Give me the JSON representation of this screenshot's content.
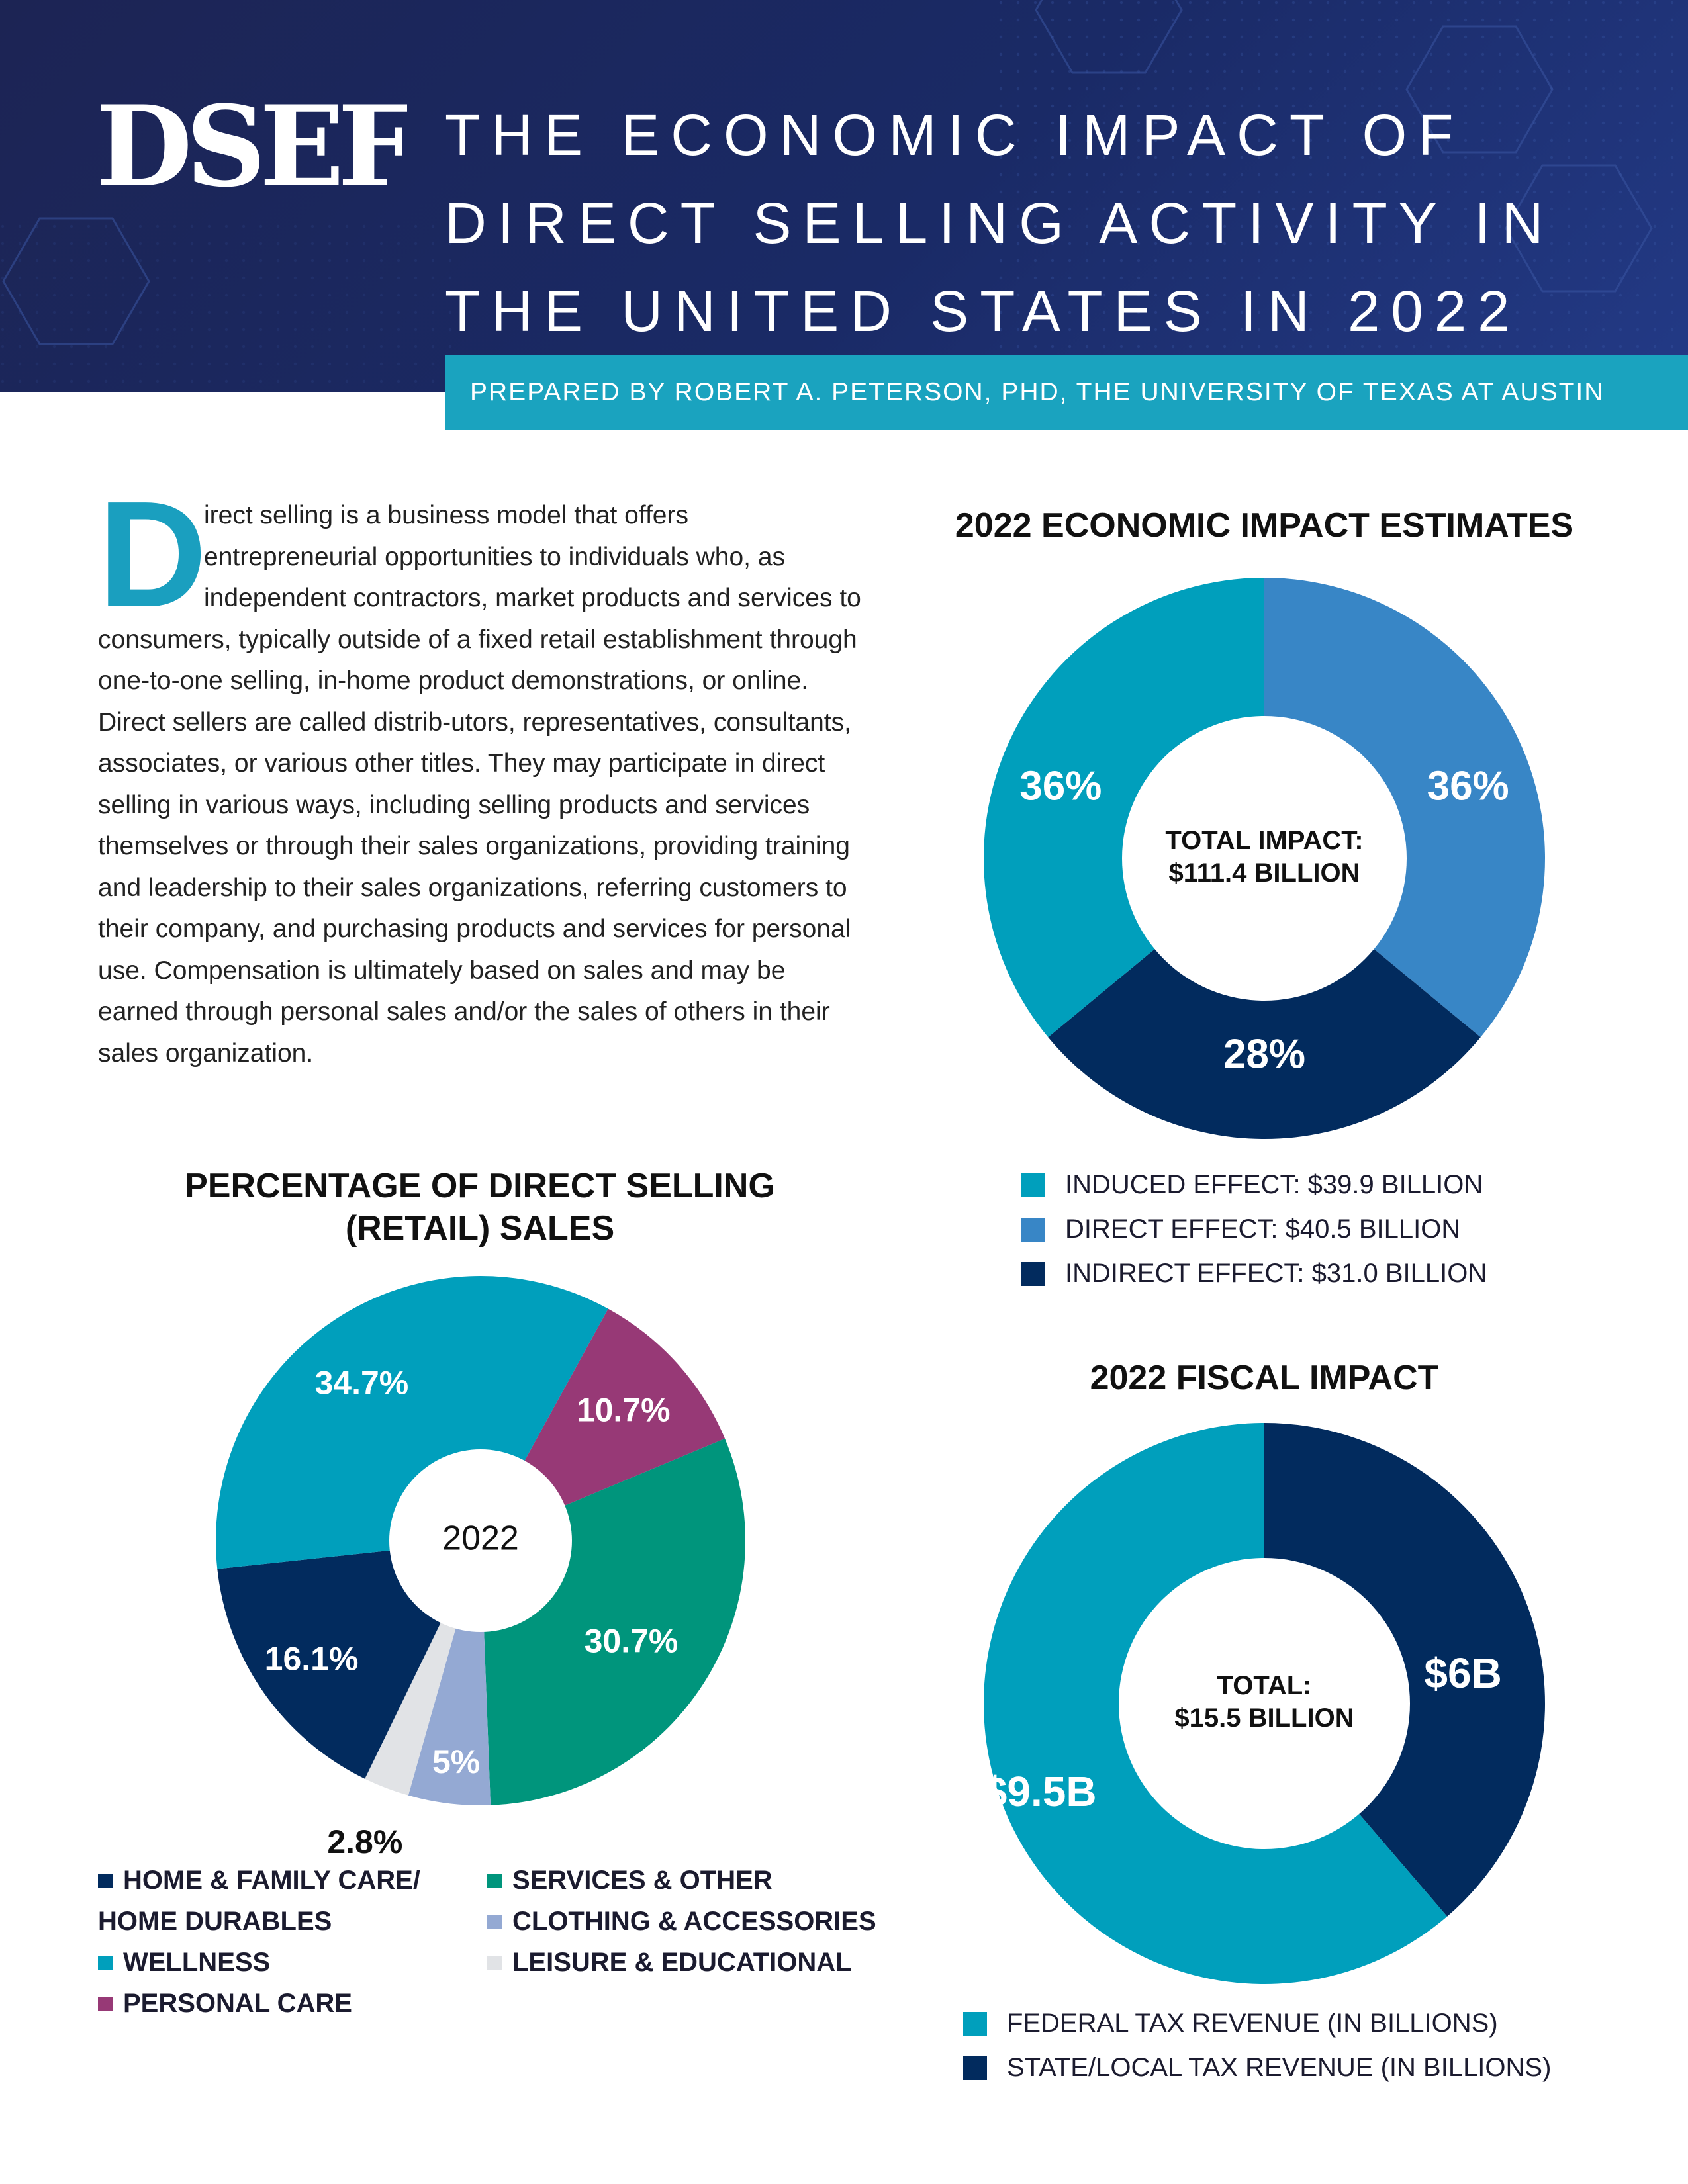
{
  "header": {
    "logo_text": "DSEF",
    "title_lines": [
      "THE ECONOMIC IMPACT OF",
      "DIRECT SELLING ACTIVITY IN",
      "THE UNITED STATES IN 2022"
    ],
    "prepared_by": "PREPARED BY ROBERT A. PETERSON, PHD, THE UNIVERSITY OF TEXAS AT AUSTIN"
  },
  "intro": {
    "dropcap": "D",
    "text": "irect selling is a business model that offers entrepreneurial opportunities to individuals who, as independent contractors, market products and services to consumers, typically outside of a fixed retail establishment through one-to-one selling, in-home product demonstrations, or online. Direct sellers are called distrib-utors, representatives, consultants, associates, or various other titles. They may participate in direct selling in various ways, including selling products and services themselves or through their sales organizations, providing training and leadership to their sales organizations, referring customers to their company, and purchasing products and services for personal use. Compensation is ultimately based on sales and may be earned through personal sales and/or the sales of others in their sales organization."
  },
  "colors": {
    "teal": "#009fbc",
    "blue": "#3886c6",
    "navy": "#022b5e",
    "green": "#00957c",
    "plum": "#973976",
    "lavender": "#94a9d3",
    "lightgray": "#e1e3e6"
  },
  "chart_data": [
    {
      "id": "economic",
      "type": "pie",
      "title": "2022 ECONOMIC IMPACT ESTIMATES",
      "center_lines": [
        "TOTAL IMPACT:",
        "$111.4 BILLION"
      ],
      "slices": [
        {
          "name": "DIRECT EFFECT: $40.5 BILLION",
          "value": 36,
          "label": "36%",
          "color": "#3886c6"
        },
        {
          "name": "INDIRECT EFFECT: $31.0 BILLION",
          "value": 28,
          "label": "28%",
          "color": "#022b5e"
        },
        {
          "name": "INDUCED EFFECT: $39.9 BILLION",
          "value": 36,
          "label": "36%",
          "color": "#009fbc"
        }
      ],
      "legend": [
        {
          "label": "INDUCED EFFECT: $39.9 BILLION",
          "color": "#009fbc"
        },
        {
          "label": "DIRECT EFFECT: $40.5 BILLION",
          "color": "#3886c6"
        },
        {
          "label": "INDIRECT EFFECT: $31.0 BILLION",
          "color": "#022b5e"
        }
      ]
    },
    {
      "id": "retail",
      "type": "pie",
      "title_lines": [
        "PERCENTAGE OF DIRECT SELLING",
        "(RETAIL) SALES"
      ],
      "center_lines": [
        "2022"
      ],
      "slices": [
        {
          "name": "PERSONAL CARE",
          "value": 10.7,
          "label": "10.7%",
          "color": "#973976"
        },
        {
          "name": "SERVICES & OTHER",
          "value": 30.7,
          "label": "30.7%",
          "color": "#00957c"
        },
        {
          "name": "CLOTHING & ACCESSORIES",
          "value": 5,
          "label": "5%",
          "color": "#94a9d3"
        },
        {
          "name": "LEISURE & EDUCATIONAL",
          "value": 2.8,
          "label": "2.8%",
          "color": "#e1e3e6"
        },
        {
          "name": "HOME & FAMILY CARE/ HOME DURABLES",
          "value": 16.1,
          "label": "16.1%",
          "color": "#022b5e"
        },
        {
          "name": "WELLNESS",
          "value": 34.7,
          "label": "34.7%",
          "color": "#009fbc"
        }
      ],
      "legend_left": [
        {
          "label_lines": [
            "HOME & FAMILY CARE/",
            "HOME DURABLES"
          ],
          "color": "#022b5e"
        },
        {
          "label_lines": [
            "WELLNESS"
          ],
          "color": "#009fbc"
        },
        {
          "label_lines": [
            "PERSONAL CARE"
          ],
          "color": "#973976"
        }
      ],
      "legend_right": [
        {
          "label_lines": [
            "SERVICES & OTHER"
          ],
          "color": "#00957c"
        },
        {
          "label_lines": [
            "CLOTHING & ACCESSORIES"
          ],
          "color": "#94a9d3"
        },
        {
          "label_lines": [
            "LEISURE & EDUCATIONAL"
          ],
          "color": "#e1e3e6"
        }
      ]
    },
    {
      "id": "fiscal",
      "type": "pie",
      "title": "2022 FISCAL IMPACT",
      "center_lines": [
        "TOTAL:",
        "$15.5 BILLION"
      ],
      "slices": [
        {
          "name": "STATE/LOCAL TAX REVENUE (IN BILLIONS)",
          "value": 6,
          "label": "$6B",
          "color": "#022b5e"
        },
        {
          "name": "FEDERAL TAX REVENUE (IN BILLIONS)",
          "value": 9.5,
          "label": "$9.5B",
          "color": "#009fbc"
        }
      ],
      "legend": [
        {
          "label": "FEDERAL TAX REVENUE (IN BILLIONS)",
          "color": "#009fbc"
        },
        {
          "label": "STATE/LOCAL TAX REVENUE (IN BILLIONS)",
          "color": "#022b5e"
        }
      ]
    }
  ]
}
